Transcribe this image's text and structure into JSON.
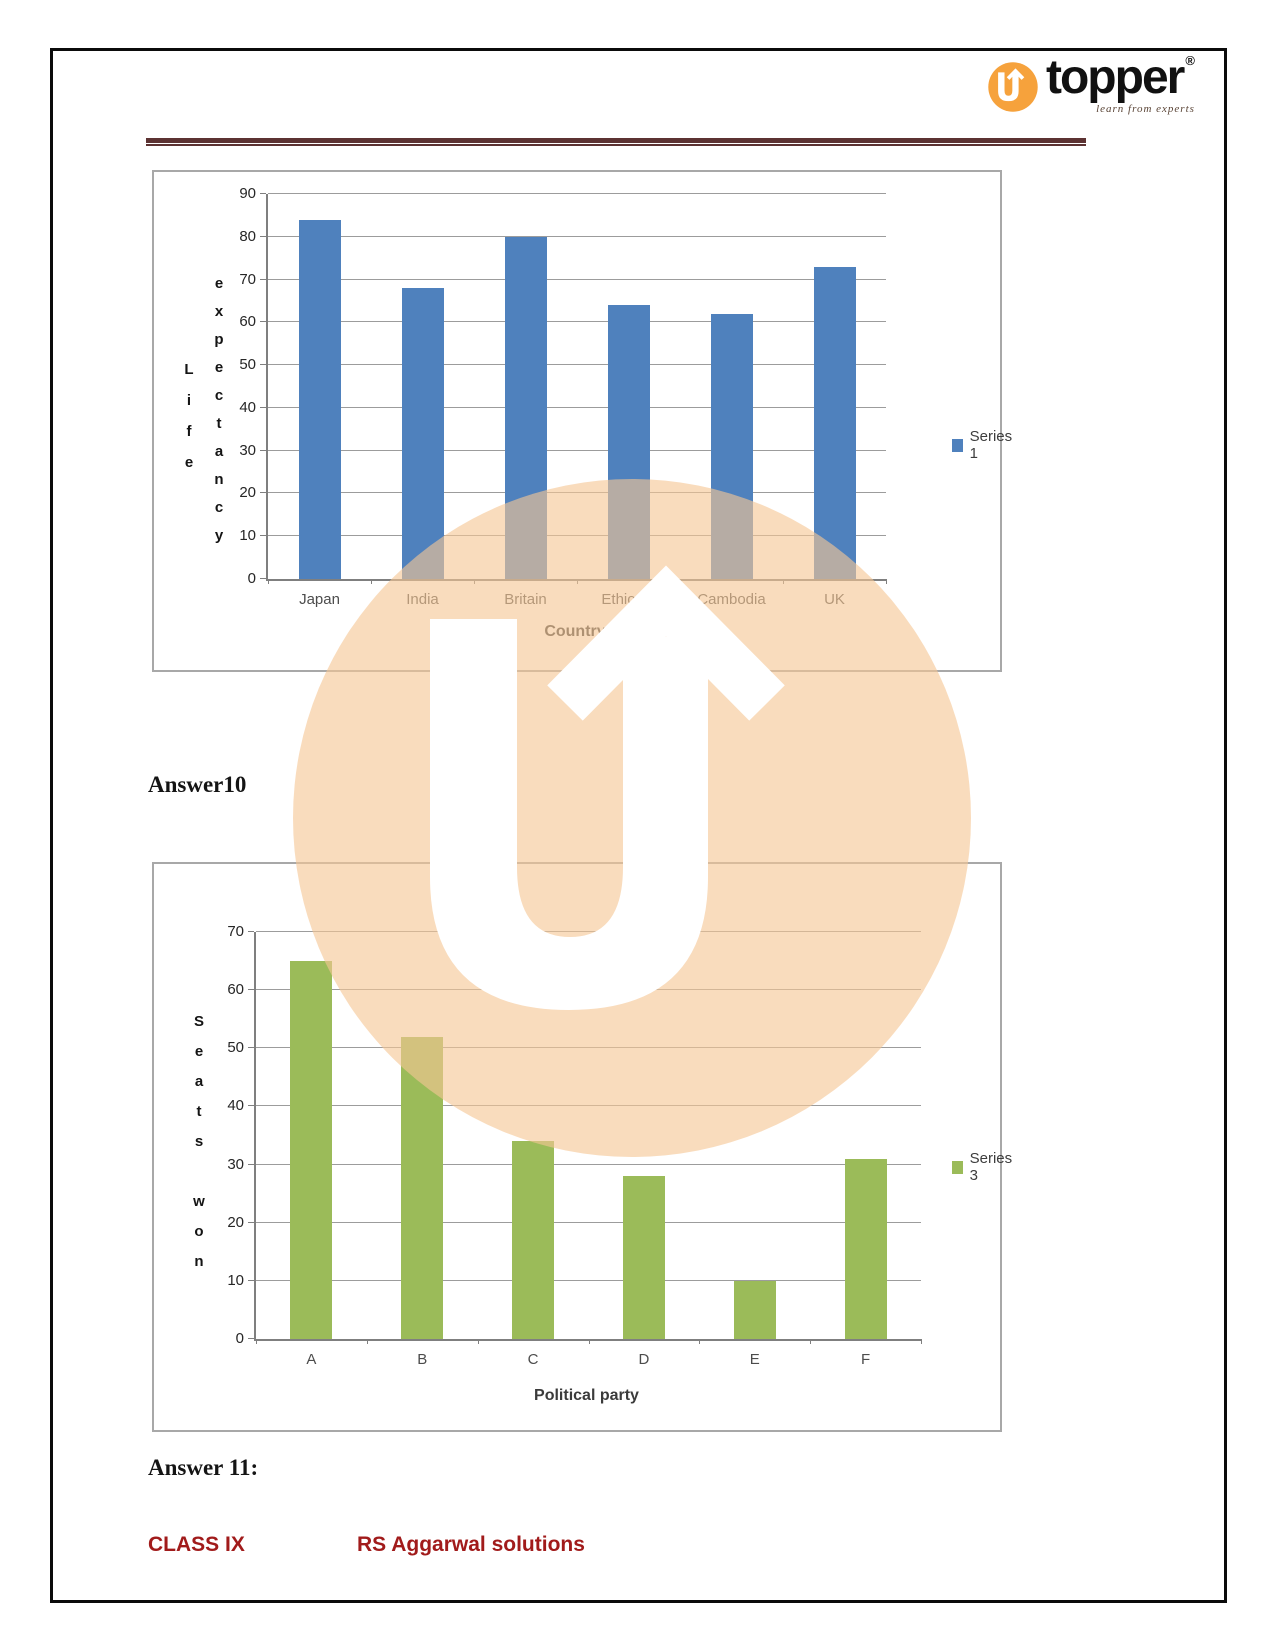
{
  "page": {
    "logo": {
      "brand": "topper",
      "registered": "®",
      "tagline": "learn from experts"
    },
    "answer10_label": "Answer10",
    "answer11_label": "Answer 11:",
    "footer": {
      "class_label": "CLASS IX",
      "source_label": "RS Aggarwal solutions"
    }
  },
  "colors": {
    "bar_blue": "#4F81BD",
    "bar_green": "#9BBB59",
    "logo_orange": "#F6A23C",
    "watermark_peach": "rgba(246,199,148,0.62)",
    "rule_maroon": "#5c3232",
    "footer_red": "#A11B1B"
  },
  "chart_data": [
    {
      "type": "bar",
      "categories": [
        "Japan",
        "India",
        "Britain",
        "Ethiopia",
        "Cambodia",
        "UK"
      ],
      "values": [
        84,
        68,
        80,
        64,
        62,
        73
      ],
      "title": "",
      "xlabel": "Country",
      "ylabel": "Life expectancy",
      "ylabel_lines": [
        "Life",
        "expectancy"
      ],
      "ylim": [
        0,
        90
      ],
      "yticks": [
        0,
        10,
        20,
        30,
        40,
        50,
        60,
        70,
        80,
        90
      ],
      "grid": true,
      "legend": "Series 1",
      "legend_position": "right",
      "bar_color": "#4F81BD"
    },
    {
      "type": "bar",
      "categories": [
        "A",
        "B",
        "C",
        "D",
        "E",
        "F"
      ],
      "values": [
        65,
        52,
        34,
        28,
        10,
        31
      ],
      "title": "",
      "xlabel": "Political party",
      "ylabel": "Seats won",
      "ylabel_lines": [
        "Seats",
        "won"
      ],
      "ylim": [
        0,
        70
      ],
      "yticks": [
        0,
        10,
        20,
        30,
        40,
        50,
        60,
        70
      ],
      "grid": true,
      "legend": "Series 3",
      "legend_position": "right",
      "bar_color": "#9BBB59"
    }
  ]
}
